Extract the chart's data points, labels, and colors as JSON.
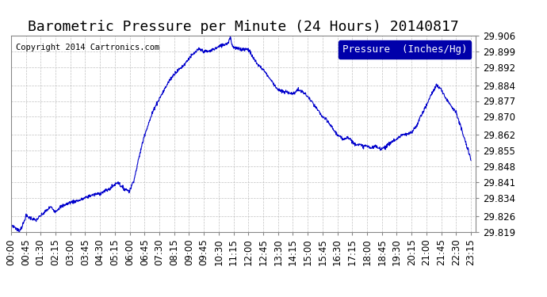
{
  "title": "Barometric Pressure per Minute (24 Hours) 20140817",
  "copyright": "Copyright 2014 Cartronics.com",
  "legend_label": "Pressure  (Inches/Hg)",
  "line_color": "#0000cc",
  "background_color": "#ffffff",
  "grid_color": "#bbbbbb",
  "ylim": [
    29.819,
    29.906
  ],
  "yticks": [
    29.819,
    29.826,
    29.834,
    29.841,
    29.848,
    29.855,
    29.862,
    29.87,
    29.877,
    29.884,
    29.892,
    29.899,
    29.906
  ],
  "xtick_labels": [
    "00:00",
    "00:45",
    "01:30",
    "02:15",
    "03:00",
    "03:45",
    "04:30",
    "05:15",
    "06:00",
    "06:45",
    "07:30",
    "08:15",
    "09:00",
    "09:45",
    "10:30",
    "11:15",
    "12:00",
    "12:45",
    "13:30",
    "14:15",
    "15:00",
    "15:45",
    "16:30",
    "17:15",
    "18:00",
    "18:45",
    "19:30",
    "20:15",
    "21:00",
    "21:45",
    "22:30",
    "23:15"
  ],
  "title_fontsize": 13,
  "tick_fontsize": 8.5,
  "copyright_fontsize": 7.5,
  "legend_fontsize": 9,
  "ctrl_times": [
    0.0,
    0.2,
    0.42,
    0.65,
    0.75,
    1.0,
    1.25,
    1.5,
    1.75,
    2.0,
    2.25,
    2.5,
    2.75,
    3.0,
    3.5,
    4.0,
    4.5,
    5.0,
    5.25,
    5.42,
    5.58,
    5.75,
    6.0,
    6.25,
    6.5,
    6.75,
    7.0,
    7.25,
    7.5,
    7.75,
    8.0,
    8.25,
    8.5,
    8.75,
    9.0,
    9.25,
    9.5,
    9.75,
    10.0,
    10.25,
    10.5,
    10.75,
    11.0,
    11.08,
    11.17,
    11.25,
    11.5,
    11.75,
    12.0,
    12.25,
    12.5,
    12.75,
    13.0,
    13.25,
    13.5,
    13.75,
    14.0,
    14.25,
    14.5,
    14.75,
    15.0,
    15.25,
    15.5,
    15.75,
    16.0,
    16.25,
    16.5,
    16.75,
    17.0,
    17.17,
    17.33,
    17.5,
    17.75,
    18.0,
    18.25,
    18.42,
    18.58,
    18.75,
    19.0,
    19.25,
    19.5,
    19.75,
    20.0,
    20.25,
    20.5,
    20.75,
    21.0,
    21.25,
    21.5,
    21.75,
    22.0,
    22.25,
    22.5,
    22.75,
    23.0,
    23.25
  ],
  "ctrl_press": [
    29.822,
    29.821,
    29.819,
    29.823,
    29.826,
    29.825,
    29.824,
    29.826,
    29.828,
    29.83,
    29.828,
    29.83,
    29.831,
    29.832,
    29.833,
    29.835,
    29.836,
    29.838,
    29.84,
    29.841,
    29.839,
    29.838,
    29.837,
    29.843,
    29.853,
    29.862,
    29.868,
    29.874,
    29.878,
    29.882,
    29.886,
    29.889,
    29.891,
    29.893,
    29.896,
    29.898,
    29.9,
    29.899,
    29.899,
    29.9,
    29.901,
    29.902,
    29.903,
    29.906,
    29.902,
    29.901,
    29.9,
    29.9,
    29.9,
    29.896,
    29.893,
    29.891,
    29.888,
    29.885,
    29.882,
    29.881,
    29.881,
    29.88,
    29.882,
    29.881,
    29.879,
    29.876,
    29.873,
    29.87,
    29.868,
    29.865,
    29.862,
    29.86,
    29.861,
    29.86,
    29.858,
    29.858,
    29.857,
    29.857,
    29.856,
    29.857,
    29.856,
    29.856,
    29.857,
    29.859,
    29.86,
    29.862,
    29.862,
    29.863,
    29.866,
    29.871,
    29.875,
    29.88,
    29.884,
    29.882,
    29.878,
    29.875,
    29.872,
    29.865,
    29.858,
    29.851
  ]
}
